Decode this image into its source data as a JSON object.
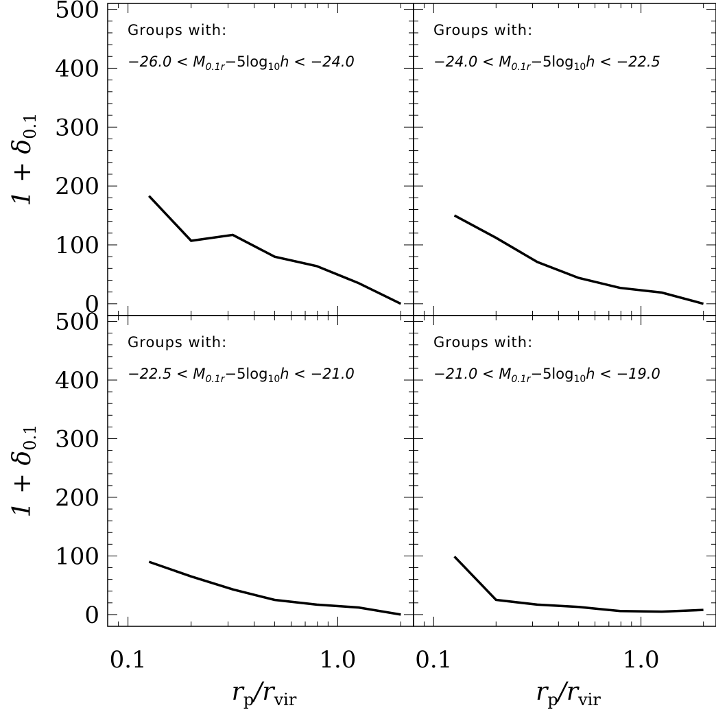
{
  "chart_data": {
    "type": "line",
    "x_scale": "log",
    "xlim": [
      0.08,
      2.3
    ],
    "ylim": [
      -20,
      510
    ],
    "grid": false,
    "xlabel": {
      "main": "r",
      "sub_main": "p",
      "mid": "/r",
      "sub_mid": "vir"
    },
    "ylabel": {
      "prefix": "1 +",
      "symbol": "δ",
      "sub": "0.1"
    },
    "x_tick_labels": [
      "0.1",
      "1.0"
    ],
    "x_ticks": [
      0.1,
      1.0
    ],
    "y_ticks": [
      0,
      100,
      200,
      300,
      400,
      500
    ],
    "y_tick_labels": [
      "0",
      "100",
      "200",
      "300",
      "400",
      "500"
    ],
    "panels": [
      {
        "header": "Groups with:",
        "range_low": "−26.0",
        "range_high": "−24.0",
        "x": [
          0.126,
          0.2,
          0.316,
          0.5,
          0.794,
          1.26,
          2.0
        ],
        "y": [
          183,
          107,
          117,
          80,
          64,
          35,
          0
        ]
      },
      {
        "header": "Groups with:",
        "range_low": "−24.0",
        "range_high": "−22.5",
        "x": [
          0.126,
          0.2,
          0.316,
          0.5,
          0.794,
          1.26,
          2.0
        ],
        "y": [
          150,
          112,
          71,
          44,
          27,
          19,
          0
        ]
      },
      {
        "header": "Groups with:",
        "range_low": "−22.5",
        "range_high": "−21.0",
        "x": [
          0.126,
          0.2,
          0.316,
          0.5,
          0.794,
          1.26,
          2.0
        ],
        "y": [
          90,
          65,
          43,
          25,
          17,
          12,
          0
        ]
      },
      {
        "header": "Groups with:",
        "range_low": "−21.0",
        "range_high": "−19.0",
        "x": [
          0.126,
          0.2,
          0.316,
          0.5,
          0.794,
          1.26,
          2.0
        ],
        "y": [
          99,
          25,
          17,
          13,
          6,
          5,
          8
        ]
      }
    ],
    "magnitude_label": {
      "m": "M",
      "m_sub": "0.1r",
      "op": "−5log",
      "log_sub": "10",
      "h": "h",
      "lt": "<"
    }
  }
}
